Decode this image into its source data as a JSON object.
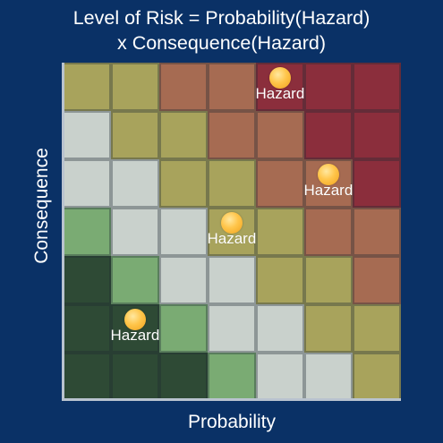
{
  "title_line1": "Level of Risk = Probability(Hazard)",
  "title_line2": "x Consequence(Hazard)",
  "x_axis_label": "Probability",
  "y_axis_label": "Consequence",
  "grid": {
    "rows": 7,
    "cols": 7,
    "colors": [
      [
        "#a8a35c",
        "#a8a35c",
        "#a66b52",
        "#a66b52",
        "#8b2e3c",
        "#8b2e3c",
        "#8b2e3c"
      ],
      [
        "#c9d1cc",
        "#a8a35c",
        "#a8a35c",
        "#a66b52",
        "#a66b52",
        "#8b2e3c",
        "#8b2e3c"
      ],
      [
        "#c9d1cc",
        "#c9d1cc",
        "#a8a35c",
        "#a8a35c",
        "#a66b52",
        "#a66b52",
        "#8b2e3c"
      ],
      [
        "#7aab73",
        "#c9d1cc",
        "#c9d1cc",
        "#a8a35c",
        "#a8a35c",
        "#a66b52",
        "#a66b52"
      ],
      [
        "#2e4a35",
        "#7aab73",
        "#c9d1cc",
        "#c9d1cc",
        "#a8a35c",
        "#a8a35c",
        "#a66b52"
      ],
      [
        "#2e4a35",
        "#2e4a35",
        "#7aab73",
        "#c9d1cc",
        "#c9d1cc",
        "#a8a35c",
        "#a8a35c"
      ],
      [
        "#2e4a35",
        "#2e4a35",
        "#2e4a35",
        "#7aab73",
        "#c9d1cc",
        "#c9d1cc",
        "#a8a35c"
      ]
    ]
  },
  "hazards": [
    {
      "label": "Hazard",
      "row": 0,
      "col": 4
    },
    {
      "label": "Hazard",
      "row": 2,
      "col": 5
    },
    {
      "label": "Hazard",
      "row": 3,
      "col": 3
    },
    {
      "label": "Hazard",
      "row": 5,
      "col": 1
    }
  ]
}
